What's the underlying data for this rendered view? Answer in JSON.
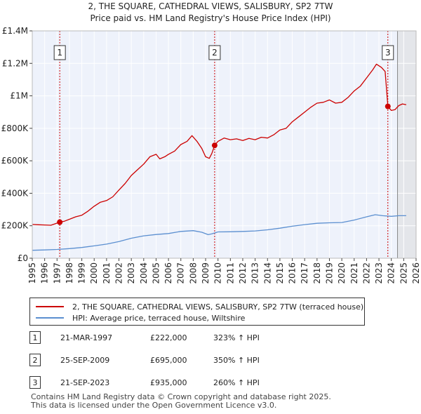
{
  "chart_data": {
    "type": "line",
    "title": "2, THE SQUARE, CATHEDRAL VIEWS, SALISBURY, SP2 7TW",
    "subtitle": "Price paid vs. HM Land Registry's House Price Index (HPI)",
    "xlim": [
      1995,
      2026
    ],
    "ylim": [
      0,
      1400000
    ],
    "x_ticks": [
      "1995",
      "1996",
      "1997",
      "1998",
      "1999",
      "2000",
      "2001",
      "2002",
      "2003",
      "2004",
      "2005",
      "2006",
      "2007",
      "2008",
      "2009",
      "2010",
      "2011",
      "2012",
      "2013",
      "2014",
      "2015",
      "2016",
      "2017",
      "2018",
      "2019",
      "2020",
      "2021",
      "2022",
      "2023",
      "2024",
      "2025",
      "2026"
    ],
    "y_ticks": [
      {
        "value": 0,
        "label": "£0"
      },
      {
        "value": 200000,
        "label": "£200K"
      },
      {
        "value": 400000,
        "label": "£400K"
      },
      {
        "value": 600000,
        "label": "£600K"
      },
      {
        "value": 800000,
        "label": "£800K"
      },
      {
        "value": 1000000,
        "label": "£1M"
      },
      {
        "value": 1200000,
        "label": "£1.2M"
      },
      {
        "value": 1400000,
        "label": "£1.4M"
      }
    ],
    "future_shade_from": 2024.5,
    "series": [
      {
        "name": "2, THE SQUARE, CATHEDRAL VIEWS, SALISBURY, SP2 7TW (terraced house)",
        "color": "#cc0000",
        "points": [
          [
            1995.0,
            208000
          ],
          [
            1995.5,
            206000
          ],
          [
            1996.0,
            205000
          ],
          [
            1996.5,
            203000
          ],
          [
            1997.22,
            222000
          ],
          [
            1997.6,
            228000
          ],
          [
            1998.0,
            240000
          ],
          [
            1998.5,
            255000
          ],
          [
            1999.0,
            265000
          ],
          [
            1999.5,
            290000
          ],
          [
            2000.0,
            320000
          ],
          [
            2000.5,
            345000
          ],
          [
            2001.0,
            355000
          ],
          [
            2001.5,
            378000
          ],
          [
            2002.0,
            420000
          ],
          [
            2002.5,
            460000
          ],
          [
            2003.0,
            510000
          ],
          [
            2003.5,
            545000
          ],
          [
            2004.0,
            580000
          ],
          [
            2004.5,
            625000
          ],
          [
            2005.0,
            640000
          ],
          [
            2005.3,
            612000
          ],
          [
            2005.7,
            625000
          ],
          [
            2006.0,
            640000
          ],
          [
            2006.5,
            660000
          ],
          [
            2007.0,
            700000
          ],
          [
            2007.5,
            720000
          ],
          [
            2007.9,
            755000
          ],
          [
            2008.3,
            720000
          ],
          [
            2008.7,
            675000
          ],
          [
            2009.0,
            625000
          ],
          [
            2009.3,
            615000
          ],
          [
            2009.5,
            645000
          ],
          [
            2009.73,
            695000
          ],
          [
            2010.0,
            720000
          ],
          [
            2010.5,
            740000
          ],
          [
            2011.0,
            730000
          ],
          [
            2011.5,
            735000
          ],
          [
            2012.0,
            725000
          ],
          [
            2012.5,
            738000
          ],
          [
            2013.0,
            730000
          ],
          [
            2013.5,
            745000
          ],
          [
            2014.0,
            740000
          ],
          [
            2014.5,
            760000
          ],
          [
            2015.0,
            790000
          ],
          [
            2015.5,
            800000
          ],
          [
            2016.0,
            840000
          ],
          [
            2016.5,
            870000
          ],
          [
            2017.0,
            900000
          ],
          [
            2017.5,
            930000
          ],
          [
            2018.0,
            955000
          ],
          [
            2018.5,
            960000
          ],
          [
            2019.0,
            975000
          ],
          [
            2019.5,
            955000
          ],
          [
            2020.0,
            960000
          ],
          [
            2020.5,
            990000
          ],
          [
            2021.0,
            1030000
          ],
          [
            2021.5,
            1060000
          ],
          [
            2022.0,
            1110000
          ],
          [
            2022.5,
            1160000
          ],
          [
            2022.8,
            1195000
          ],
          [
            2023.2,
            1175000
          ],
          [
            2023.5,
            1150000
          ],
          [
            2023.72,
            935000
          ],
          [
            2024.0,
            910000
          ],
          [
            2024.3,
            915000
          ],
          [
            2024.6,
            940000
          ],
          [
            2024.9,
            950000
          ],
          [
            2025.2,
            945000
          ]
        ]
      },
      {
        "name": "HPI: Average price, terraced house, Wiltshire",
        "color": "#5b8fd0",
        "points": [
          [
            1995.0,
            49000
          ],
          [
            1996.0,
            51000
          ],
          [
            1997.0,
            54000
          ],
          [
            1998.0,
            59000
          ],
          [
            1999.0,
            66000
          ],
          [
            2000.0,
            76000
          ],
          [
            2001.0,
            87000
          ],
          [
            2002.0,
            103000
          ],
          [
            2003.0,
            123000
          ],
          [
            2004.0,
            138000
          ],
          [
            2005.0,
            146000
          ],
          [
            2006.0,
            152000
          ],
          [
            2007.0,
            165000
          ],
          [
            2008.0,
            170000
          ],
          [
            2008.7,
            160000
          ],
          [
            2009.2,
            145000
          ],
          [
            2009.5,
            150000
          ],
          [
            2010.0,
            162000
          ],
          [
            2011.0,
            163000
          ],
          [
            2012.0,
            165000
          ],
          [
            2013.0,
            168000
          ],
          [
            2014.0,
            175000
          ],
          [
            2015.0,
            185000
          ],
          [
            2016.0,
            197000
          ],
          [
            2017.0,
            207000
          ],
          [
            2018.0,
            215000
          ],
          [
            2019.0,
            218000
          ],
          [
            2020.0,
            220000
          ],
          [
            2021.0,
            235000
          ],
          [
            2022.0,
            255000
          ],
          [
            2022.7,
            268000
          ],
          [
            2023.3,
            262000
          ],
          [
            2024.0,
            258000
          ],
          [
            2024.6,
            262000
          ],
          [
            2025.2,
            262000
          ]
        ]
      }
    ],
    "sales": [
      {
        "num": "1",
        "x": 1997.22,
        "y": 222000
      },
      {
        "num": "2",
        "x": 2009.73,
        "y": 695000
      },
      {
        "num": "3",
        "x": 2023.72,
        "y": 935000
      }
    ]
  },
  "legend": [
    {
      "label": "2, THE SQUARE, CATHEDRAL VIEWS, SALISBURY, SP2 7TW (terraced house)",
      "color": "#cc0000"
    },
    {
      "label": "HPI: Average price, terraced house, Wiltshire",
      "color": "#5b8fd0"
    }
  ],
  "sales_table": [
    {
      "num": "1",
      "date": "21-MAR-1997",
      "price": "£222,000",
      "hpi": "323% ↑ HPI"
    },
    {
      "num": "2",
      "date": "25-SEP-2009",
      "price": "£695,000",
      "hpi": "350% ↑ HPI"
    },
    {
      "num": "3",
      "date": "21-SEP-2023",
      "price": "£935,000",
      "hpi": "260% ↑ HPI"
    }
  ],
  "footer": {
    "line1": "Contains HM Land Registry data © Crown copyright and database right 2025.",
    "line2": "This data is licensed under the Open Government Licence v3.0."
  }
}
